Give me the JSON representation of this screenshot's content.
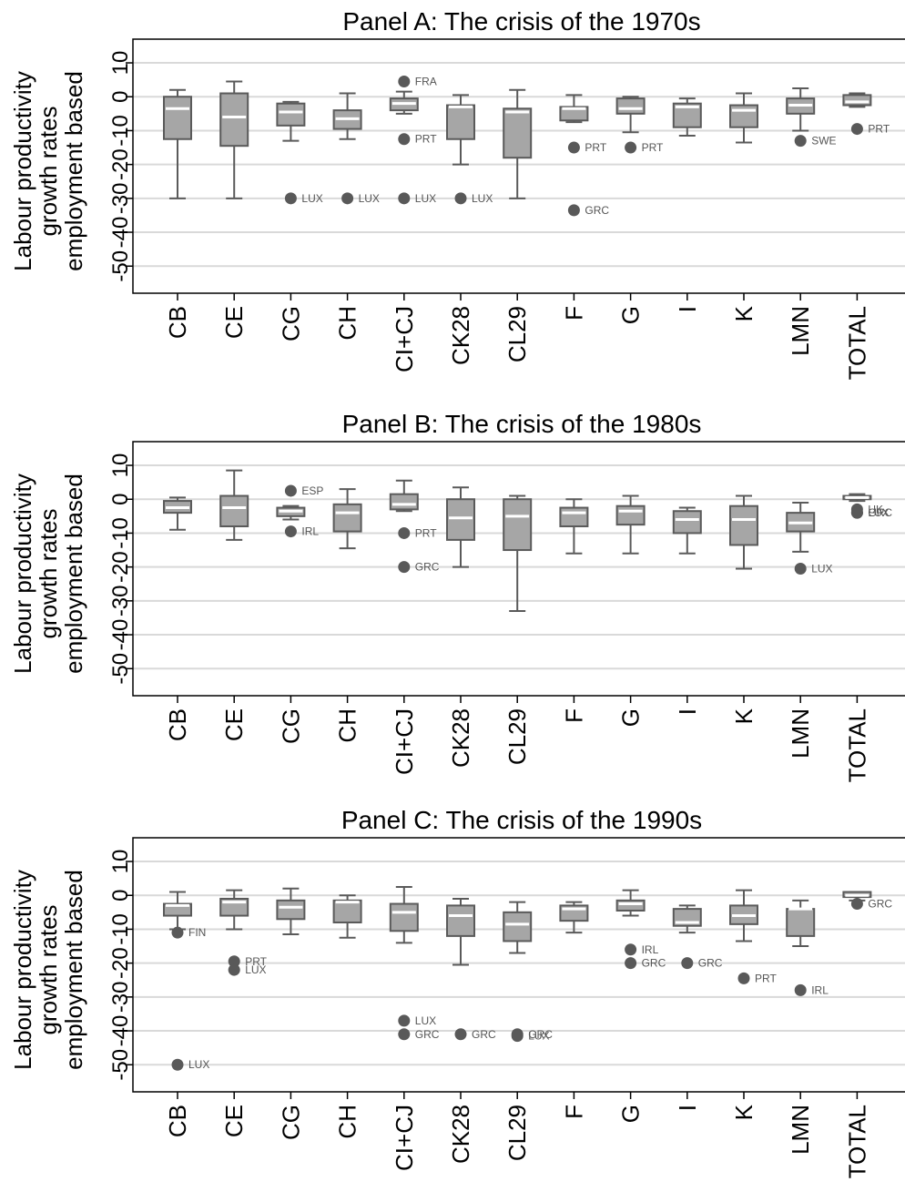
{
  "chart_data": [
    {
      "type": "box",
      "title": "Panel A: The crisis of the 1970s",
      "ylabel": [
        "Labour productivity",
        "growth rates",
        "employment based"
      ],
      "yticks": [
        10,
        0,
        -10,
        -20,
        -30,
        -40,
        -50
      ],
      "ytick_labels": [
        "10",
        "0",
        "-10",
        "-20",
        "-30",
        "-40",
        "-50"
      ],
      "ylim": [
        -58,
        17
      ],
      "grid": true,
      "categories": [
        "CB",
        "CE",
        "CG",
        "CH",
        "CI+CJ",
        "CK28",
        "CL29",
        "F",
        "G",
        "I",
        "K",
        "LMN",
        "TOTAL"
      ],
      "boxes": [
        {
          "lw": -30,
          "q1": -12.5,
          "med": -3.5,
          "q3": 0,
          "uw": 2
        },
        {
          "lw": -30,
          "q1": -14.5,
          "med": -6,
          "q3": 1,
          "uw": 4.5
        },
        {
          "lw": -13,
          "q1": -8.5,
          "med": -4.5,
          "q3": -2,
          "uw": -1.5
        },
        {
          "lw": -12.5,
          "q1": -9.5,
          "med": -6.5,
          "q3": -4,
          "uw": 1
        },
        {
          "lw": -5,
          "q1": -4,
          "med": -2,
          "q3": -0.5,
          "uw": 1.5
        },
        {
          "lw": -20,
          "q1": -12.5,
          "med": -3,
          "q3": -2.5,
          "uw": 0.5
        },
        {
          "lw": -30,
          "q1": -18,
          "med": -4.5,
          "q3": -3.5,
          "uw": 2
        },
        {
          "lw": -7.5,
          "q1": -7,
          "med": -3.5,
          "q3": -3,
          "uw": 0.5
        },
        {
          "lw": -10.5,
          "q1": -5,
          "med": -3.5,
          "q3": -0.5,
          "uw": 0
        },
        {
          "lw": -11.5,
          "q1": -9,
          "med": -3,
          "q3": -2,
          "uw": -0.5
        },
        {
          "lw": -13.5,
          "q1": -9,
          "med": -4,
          "q3": -2.5,
          "uw": 1
        },
        {
          "lw": -10,
          "q1": -5,
          "med": -2.5,
          "q3": -0.5,
          "uw": 2.5
        },
        {
          "lw": -3,
          "q1": -2.5,
          "med": -1.5,
          "q3": 0.5,
          "uw": 1
        }
      ],
      "outliers": [
        {
          "cat": "CG",
          "y": -30,
          "label": "LUX"
        },
        {
          "cat": "CH",
          "y": -30,
          "label": "LUX"
        },
        {
          "cat": "CI+CJ",
          "y": 4.5,
          "label": "FRA"
        },
        {
          "cat": "CI+CJ",
          "y": -12.5,
          "label": "PRT"
        },
        {
          "cat": "CI+CJ",
          "y": -30,
          "label": "LUX"
        },
        {
          "cat": "CK28",
          "y": -30,
          "label": "LUX"
        },
        {
          "cat": "F",
          "y": -15,
          "label": "PRT"
        },
        {
          "cat": "F",
          "y": -33.5,
          "label": "GRC"
        },
        {
          "cat": "G",
          "y": -15,
          "label": "PRT"
        },
        {
          "cat": "LMN",
          "y": -13,
          "label": "SWE"
        },
        {
          "cat": "TOTAL",
          "y": -9.5,
          "label": "PRT"
        }
      ]
    },
    {
      "type": "box",
      "title": "Panel B: The crisis of the 1980s",
      "ylabel": [
        "Labour productivity",
        "growth rates",
        "employment based"
      ],
      "yticks": [
        10,
        0,
        -10,
        -20,
        -30,
        -40,
        -50
      ],
      "ytick_labels": [
        "10",
        "0",
        "-10",
        "-20",
        "-30",
        "-40",
        "-50"
      ],
      "ylim": [
        -58,
        17
      ],
      "grid": true,
      "categories": [
        "CB",
        "CE",
        "CG",
        "CH",
        "CI+CJ",
        "CK28",
        "CL29",
        "F",
        "G",
        "I",
        "K",
        "LMN",
        "TOTAL"
      ],
      "boxes": [
        {
          "lw": -9,
          "q1": -4,
          "med": -2.5,
          "q3": -0.5,
          "uw": 0.5
        },
        {
          "lw": -12,
          "q1": -8,
          "med": -2.5,
          "q3": 1,
          "uw": 8.5
        },
        {
          "lw": -6,
          "q1": -5,
          "med": -3.5,
          "q3": -2.5,
          "uw": -2
        },
        {
          "lw": -14.5,
          "q1": -9.5,
          "med": -4,
          "q3": -1.5,
          "uw": 3
        },
        {
          "lw": -3.5,
          "q1": -3,
          "med": -1.5,
          "q3": 1.5,
          "uw": 5.5
        },
        {
          "lw": -20,
          "q1": -12,
          "med": -5.5,
          "q3": 0,
          "uw": 3.5
        },
        {
          "lw": -33,
          "q1": -15,
          "med": -5,
          "q3": 0,
          "uw": 1
        },
        {
          "lw": -16,
          "q1": -8,
          "med": -4,
          "q3": -2.5,
          "uw": 0
        },
        {
          "lw": -16,
          "q1": -7.5,
          "med": -3.5,
          "q3": -2,
          "uw": 1
        },
        {
          "lw": -16,
          "q1": -10,
          "med": -6,
          "q3": -3.5,
          "uw": -2.5
        },
        {
          "lw": -20.5,
          "q1": -13.5,
          "med": -6,
          "q3": -2,
          "uw": 1
        },
        {
          "lw": -15.5,
          "q1": -9.5,
          "med": -7,
          "q3": -4,
          "uw": -1
        },
        {
          "lw": -0.5,
          "q1": 0,
          "med": 0.5,
          "q3": 1,
          "uw": 1.5
        }
      ],
      "outliers": [
        {
          "cat": "CG",
          "y": 2.5,
          "label": "ESP"
        },
        {
          "cat": "CG",
          "y": -9.5,
          "label": "IRL"
        },
        {
          "cat": "CI+CJ",
          "y": -10,
          "label": "PRT"
        },
        {
          "cat": "CI+CJ",
          "y": -20,
          "label": "GRC"
        },
        {
          "cat": "LMN",
          "y": -20.5,
          "label": "LUX"
        },
        {
          "cat": "TOTAL",
          "y": -3,
          "label": "UK"
        },
        {
          "cat": "TOTAL",
          "y": -4,
          "label": "LUX"
        },
        {
          "cat": "TOTAL",
          "y": -4,
          "label": "GRC"
        }
      ]
    },
    {
      "type": "box",
      "title": "Panel C: The crisis of the 1990s",
      "ylabel": [
        "Labour productivity",
        "growth rates",
        "employment based"
      ],
      "yticks": [
        10,
        0,
        -10,
        -20,
        -30,
        -40,
        -50
      ],
      "ytick_labels": [
        "10",
        "0",
        "-10",
        "-20",
        "-30",
        "-40",
        "-50"
      ],
      "ylim": [
        -58,
        17
      ],
      "grid": true,
      "categories": [
        "CB",
        "CE",
        "CG",
        "CH",
        "CI+CJ",
        "CK28",
        "CL29",
        "F",
        "G",
        "I",
        "K",
        "LMN",
        "TOTAL"
      ],
      "boxes": [
        {
          "lw": -10,
          "q1": -6,
          "med": -3,
          "q3": -2.5,
          "uw": 1
        },
        {
          "lw": -10,
          "q1": -6,
          "med": -2,
          "q3": -1,
          "uw": 1.5
        },
        {
          "lw": -11.5,
          "q1": -7,
          "med": -3.5,
          "q3": -1.5,
          "uw": 2
        },
        {
          "lw": -12.5,
          "q1": -8,
          "med": -2,
          "q3": -1.5,
          "uw": 0
        },
        {
          "lw": -14,
          "q1": -10.5,
          "med": -5,
          "q3": -2.5,
          "uw": 2.5
        },
        {
          "lw": -20.5,
          "q1": -12,
          "med": -6,
          "q3": -3,
          "uw": -1
        },
        {
          "lw": -17,
          "q1": -13.5,
          "med": -8.5,
          "q3": -5,
          "uw": -2
        },
        {
          "lw": -11,
          "q1": -7.5,
          "med": -4,
          "q3": -3,
          "uw": -2
        },
        {
          "lw": -6,
          "q1": -4.5,
          "med": -2.5,
          "q3": -1.5,
          "uw": 1.5
        },
        {
          "lw": -11,
          "q1": -9,
          "med": -8,
          "q3": -4,
          "uw": -3
        },
        {
          "lw": -13.5,
          "q1": -8.5,
          "med": -6,
          "q3": -3,
          "uw": 1.5
        },
        {
          "lw": -15,
          "q1": -12,
          "med": -4,
          "q3": -4,
          "uw": -1.5
        },
        {
          "lw": -1.5,
          "q1": -0.5,
          "med": 0,
          "q3": 1,
          "uw": 1
        }
      ],
      "outliers": [
        {
          "cat": "CB",
          "y": -11,
          "label": "FIN"
        },
        {
          "cat": "CB",
          "y": -50,
          "label": "LUX"
        },
        {
          "cat": "CE",
          "y": -19.5,
          "label": "PRT"
        },
        {
          "cat": "CE",
          "y": -22,
          "label": "LUX"
        },
        {
          "cat": "CI+CJ",
          "y": -37,
          "label": "LUX"
        },
        {
          "cat": "CI+CJ",
          "y": -41,
          "label": "GRC"
        },
        {
          "cat": "CK28",
          "y": -41,
          "label": "GRC"
        },
        {
          "cat": "CL29",
          "y": -41,
          "label": "GRC"
        },
        {
          "cat": "CL29",
          "y": -41.5,
          "label": "LUX"
        },
        {
          "cat": "G",
          "y": -16,
          "label": "IRL"
        },
        {
          "cat": "G",
          "y": -20,
          "label": "GRC"
        },
        {
          "cat": "I",
          "y": -20,
          "label": "GRC"
        },
        {
          "cat": "K",
          "y": -24.5,
          "label": "PRT"
        },
        {
          "cat": "LMN",
          "y": -28,
          "label": "IRL"
        },
        {
          "cat": "TOTAL",
          "y": -2.5,
          "label": "GRC"
        }
      ]
    }
  ]
}
